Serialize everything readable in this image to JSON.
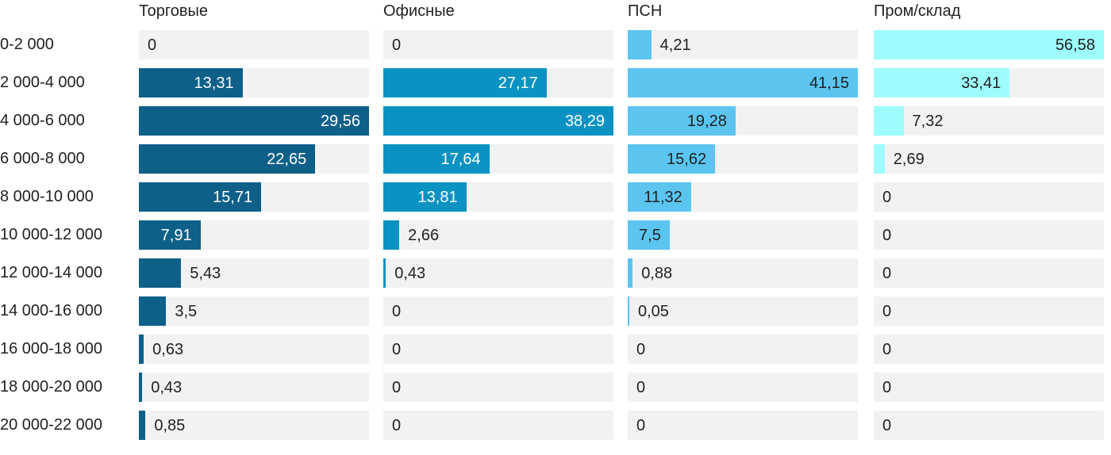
{
  "chart_data": {
    "type": "bar",
    "orientation": "horizontal",
    "normalization": "per-series-max",
    "grid": false,
    "legend_position": "column-headers",
    "track_color": "#f2f2f2",
    "text_color": "#212121",
    "categories": [
      "0-2 000",
      "2 000-4 000",
      "4 000-6 000",
      "6 000-8 000",
      "8 000-10 000",
      "10 000-12 000",
      "12 000-14 000",
      "14 000-16 000",
      "16 000-18 000",
      "18 000-20 000",
      "20 000-22 000"
    ],
    "series": [
      {
        "name": "Торговые",
        "color": "#0f6089",
        "label_color_inside": "#ffffff",
        "values": [
          0,
          13.31,
          29.56,
          22.65,
          15.71,
          7.91,
          5.43,
          3.5,
          0.63,
          0.43,
          0.85
        ],
        "labels": [
          "0",
          "13,31",
          "29,56",
          "22,65",
          "15,71",
          "7,91",
          "5,43",
          "3,5",
          "0,63",
          "0,43",
          "0,85"
        ]
      },
      {
        "name": "Офисные",
        "color": "#0a93c2",
        "label_color_inside": "#ffffff",
        "values": [
          0,
          27.17,
          38.29,
          17.64,
          13.81,
          2.66,
          0.43,
          0,
          0,
          0,
          0
        ],
        "labels": [
          "0",
          "27,17",
          "38,29",
          "17,64",
          "13,81",
          "2,66",
          "0,43",
          "0",
          "0",
          "0",
          "0"
        ]
      },
      {
        "name": "ПСН",
        "color": "#5bc5f0",
        "label_color_inside": "#212121",
        "values": [
          4.21,
          41.15,
          19.28,
          15.62,
          11.32,
          7.5,
          0.88,
          0.05,
          0,
          0,
          0
        ],
        "labels": [
          "4,21",
          "41,15",
          "19,28",
          "15,62",
          "11,32",
          "7,5",
          "0,88",
          "0,05",
          "0",
          "0",
          "0"
        ]
      },
      {
        "name": "Пром/склад",
        "color": "#9efcfc",
        "label_color_inside": "#212121",
        "values": [
          56.58,
          33.41,
          7.32,
          2.69,
          0,
          0,
          0,
          0,
          0,
          0,
          0
        ],
        "labels": [
          "56,58",
          "33,41",
          "7,32",
          "2,69",
          "0",
          "0",
          "0",
          "0",
          "0",
          "0",
          "0"
        ]
      }
    ]
  }
}
